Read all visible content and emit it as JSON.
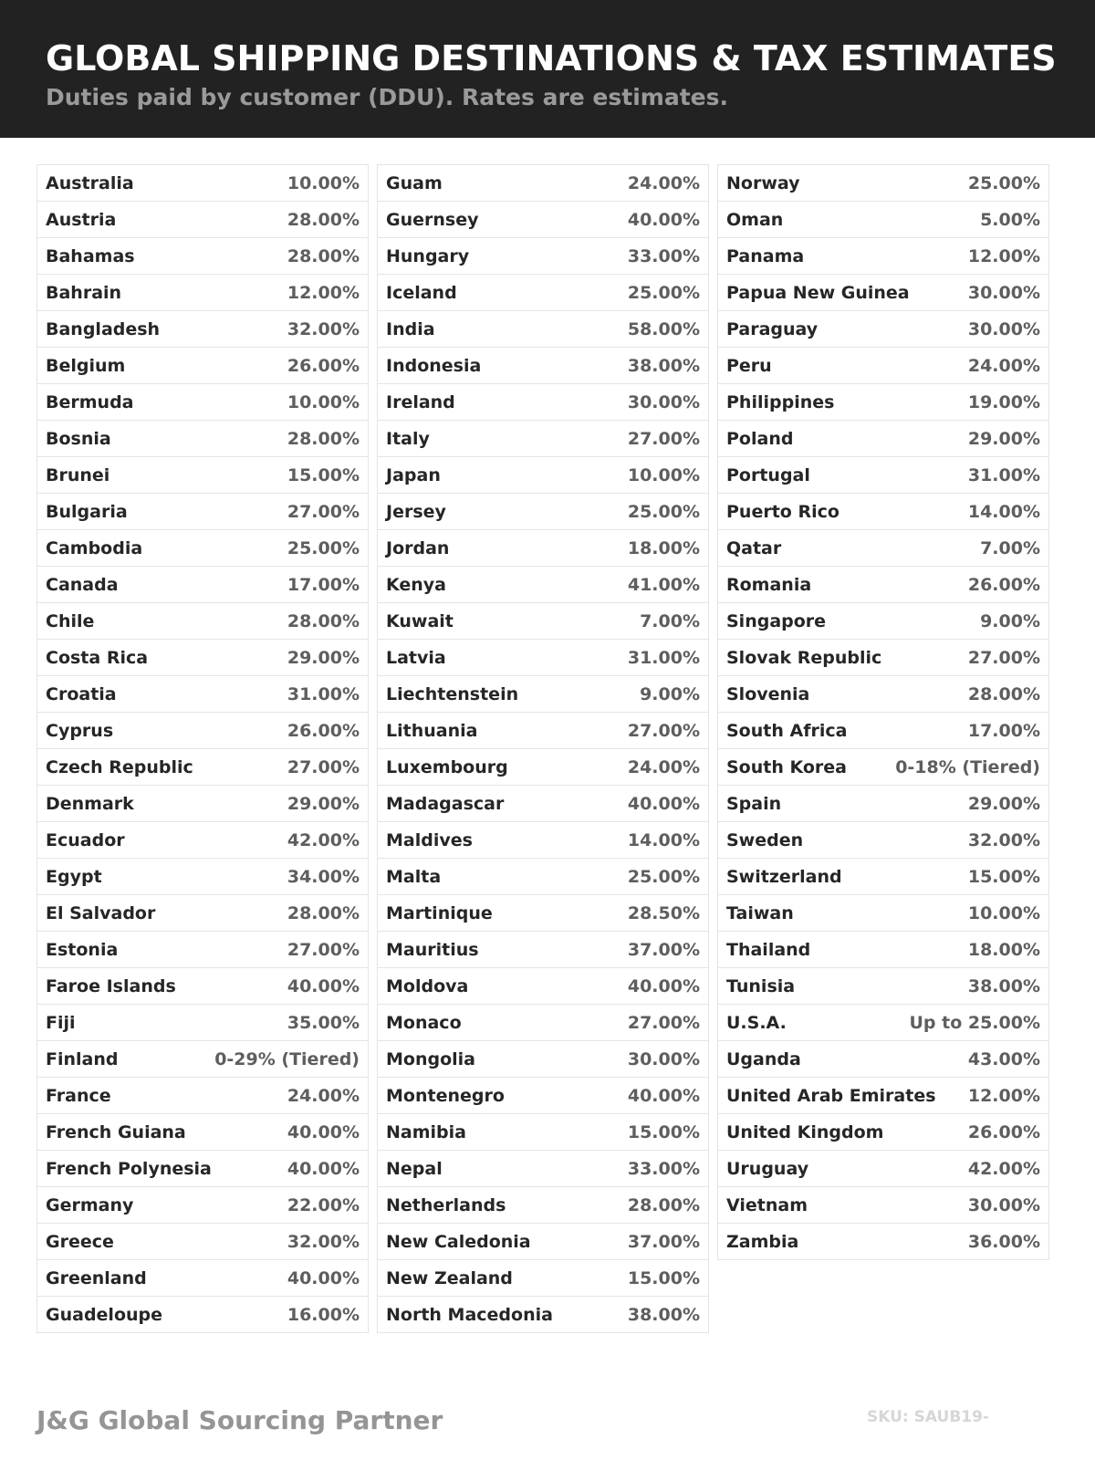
{
  "header": {
    "title": "GLOBAL SHIPPING DESTINATIONS & TAX ESTIMATES",
    "subtitle": "Duties paid by customer (DDU). Rates are estimates."
  },
  "columns": [
    [
      [
        "Australia",
        "10.00%"
      ],
      [
        "Austria",
        "28.00%"
      ],
      [
        "Bahamas",
        "28.00%"
      ],
      [
        "Bahrain",
        "12.00%"
      ],
      [
        "Bangladesh",
        "32.00%"
      ],
      [
        "Belgium",
        "26.00%"
      ],
      [
        "Bermuda",
        "10.00%"
      ],
      [
        "Bosnia",
        "28.00%"
      ],
      [
        "Brunei",
        "15.00%"
      ],
      [
        "Bulgaria",
        "27.00%"
      ],
      [
        "Cambodia",
        "25.00%"
      ],
      [
        "Canada",
        "17.00%"
      ],
      [
        "Chile",
        "28.00%"
      ],
      [
        "Costa Rica",
        "29.00%"
      ],
      [
        "Croatia",
        "31.00%"
      ],
      [
        "Cyprus",
        "26.00%"
      ],
      [
        "Czech Republic",
        "27.00%"
      ],
      [
        "Denmark",
        "29.00%"
      ],
      [
        "Ecuador",
        "42.00%"
      ],
      [
        "Egypt",
        "34.00%"
      ],
      [
        "El Salvador",
        "28.00%"
      ],
      [
        "Estonia",
        "27.00%"
      ],
      [
        "Faroe Islands",
        "40.00%"
      ],
      [
        "Fiji",
        "35.00%"
      ],
      [
        "Finland",
        "0-29% (Tiered)"
      ],
      [
        "France",
        "24.00%"
      ],
      [
        "French Guiana",
        "40.00%"
      ],
      [
        "French Polynesia",
        "40.00%"
      ],
      [
        "Germany",
        "22.00%"
      ],
      [
        "Greece",
        "32.00%"
      ],
      [
        "Greenland",
        "40.00%"
      ],
      [
        "Guadeloupe",
        "16.00%"
      ]
    ],
    [
      [
        "Guam",
        "24.00%"
      ],
      [
        "Guernsey",
        "40.00%"
      ],
      [
        "Hungary",
        "33.00%"
      ],
      [
        "Iceland",
        "25.00%"
      ],
      [
        "India",
        "58.00%"
      ],
      [
        "Indonesia",
        "38.00%"
      ],
      [
        "Ireland",
        "30.00%"
      ],
      [
        "Italy",
        "27.00%"
      ],
      [
        "Japan",
        "10.00%"
      ],
      [
        "Jersey",
        "25.00%"
      ],
      [
        "Jordan",
        "18.00%"
      ],
      [
        "Kenya",
        "41.00%"
      ],
      [
        "Kuwait",
        "7.00%"
      ],
      [
        "Latvia",
        "31.00%"
      ],
      [
        "Liechtenstein",
        "9.00%"
      ],
      [
        "Lithuania",
        "27.00%"
      ],
      [
        "Luxembourg",
        "24.00%"
      ],
      [
        "Madagascar",
        "40.00%"
      ],
      [
        "Maldives",
        "14.00%"
      ],
      [
        "Malta",
        "25.00%"
      ],
      [
        "Martinique",
        "28.50%"
      ],
      [
        "Mauritius",
        "37.00%"
      ],
      [
        "Moldova",
        "40.00%"
      ],
      [
        "Monaco",
        "27.00%"
      ],
      [
        "Mongolia",
        "30.00%"
      ],
      [
        "Montenegro",
        "40.00%"
      ],
      [
        "Namibia",
        "15.00%"
      ],
      [
        "Nepal",
        "33.00%"
      ],
      [
        "Netherlands",
        "28.00%"
      ],
      [
        "New Caledonia",
        "37.00%"
      ],
      [
        "New Zealand",
        "15.00%"
      ],
      [
        "North Macedonia",
        "38.00%"
      ]
    ],
    [
      [
        "Norway",
        "25.00%"
      ],
      [
        "Oman",
        "5.00%"
      ],
      [
        "Panama",
        "12.00%"
      ],
      [
        "Papua New Guinea",
        "30.00%"
      ],
      [
        "Paraguay",
        "30.00%"
      ],
      [
        "Peru",
        "24.00%"
      ],
      [
        "Philippines",
        "19.00%"
      ],
      [
        "Poland",
        "29.00%"
      ],
      [
        "Portugal",
        "31.00%"
      ],
      [
        "Puerto Rico",
        "14.00%"
      ],
      [
        "Qatar",
        "7.00%"
      ],
      [
        "Romania",
        "26.00%"
      ],
      [
        "Singapore",
        "9.00%"
      ],
      [
        "Slovak Republic",
        "27.00%"
      ],
      [
        "Slovenia",
        "28.00%"
      ],
      [
        "South Africa",
        "17.00%"
      ],
      [
        "South Korea",
        "0-18% (Tiered)"
      ],
      [
        "Spain",
        "29.00%"
      ],
      [
        "Sweden",
        "32.00%"
      ],
      [
        "Switzerland",
        "15.00%"
      ],
      [
        "Taiwan",
        "10.00%"
      ],
      [
        "Thailand",
        "18.00%"
      ],
      [
        "Tunisia",
        "38.00%"
      ],
      [
        "U.S.A.",
        "Up to 25.00%"
      ],
      [
        "Uganda",
        "43.00%"
      ],
      [
        "United Arab Emirates",
        "12.00%"
      ],
      [
        "United Kingdom",
        "26.00%"
      ],
      [
        "Uruguay",
        "42.00%"
      ],
      [
        "Vietnam",
        "30.00%"
      ],
      [
        "Zambia",
        "36.00%"
      ]
    ]
  ],
  "footer": {
    "brand": "J&G Global Sourcing Partner",
    "sku": "SKU: SAUB19-"
  }
}
